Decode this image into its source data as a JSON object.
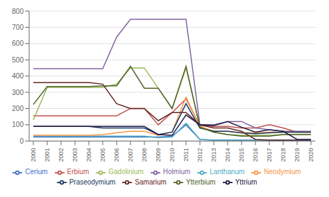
{
  "chart_data": {
    "type": "line",
    "x": [
      2000,
      2001,
      2002,
      2003,
      2004,
      2005,
      2006,
      2007,
      2008,
      2009,
      2010,
      2011,
      2012,
      2013,
      2014,
      2015,
      2016,
      2017,
      2018,
      2019,
      2020
    ],
    "series": [
      {
        "name": "Cerium",
        "color": "#4472C4",
        "values": [
          25,
          25,
          25,
          25,
          25,
          25,
          25,
          25,
          25,
          25,
          30,
          100,
          10,
          5,
          5,
          5,
          5,
          5,
          5,
          5,
          5
        ]
      },
      {
        "name": "Erbium",
        "color": "#C0504D",
        "values": [
          155,
          155,
          155,
          155,
          155,
          155,
          155,
          200,
          200,
          100,
          175,
          260,
          95,
          90,
          90,
          80,
          80,
          100,
          80,
          55,
          55
        ]
      },
      {
        "name": "Gadolinium",
        "color": "#9BBB59",
        "values": [
          130,
          330,
          330,
          330,
          330,
          330,
          350,
          450,
          450,
          325,
          200,
          450,
          90,
          55,
          40,
          35,
          35,
          35,
          40,
          40,
          40
        ]
      },
      {
        "name": "Holmium",
        "color": "#8064A2",
        "values": [
          445,
          445,
          445,
          445,
          445,
          445,
          640,
          750,
          750,
          750,
          750,
          750,
          100,
          100,
          120,
          120,
          80,
          70,
          60,
          60,
          60
        ]
      },
      {
        "name": "Lanthanum",
        "color": "#4BACC6",
        "values": [
          30,
          30,
          30,
          30,
          30,
          30,
          30,
          30,
          30,
          20,
          25,
          110,
          10,
          5,
          5,
          3,
          2,
          2,
          2,
          2,
          2
        ]
      },
      {
        "name": "Neodymium",
        "color": "#F79646",
        "values": [
          35,
          35,
          35,
          35,
          35,
          40,
          50,
          60,
          60,
          35,
          55,
          270,
          90,
          60,
          60,
          50,
          50,
          55,
          55,
          55,
          55
        ]
      },
      {
        "name": "Praseodymium",
        "color": "#17375E",
        "values": [
          90,
          90,
          90,
          90,
          90,
          80,
          80,
          80,
          80,
          40,
          55,
          230,
          80,
          60,
          60,
          50,
          45,
          50,
          55,
          55,
          55
        ]
      },
      {
        "name": "Samarium",
        "color": "#632523",
        "values": [
          360,
          360,
          360,
          360,
          360,
          350,
          230,
          200,
          200,
          125,
          175,
          175,
          100,
          80,
          80,
          60,
          10,
          5,
          5,
          5,
          5
        ]
      },
      {
        "name": "Ytterbium",
        "color": "#4F6228",
        "values": [
          225,
          335,
          335,
          335,
          335,
          340,
          340,
          460,
          325,
          325,
          200,
          460,
          85,
          55,
          40,
          30,
          30,
          30,
          40,
          40,
          40
        ]
      },
      {
        "name": "Yttrium",
        "color": "#1F1646",
        "values": [
          90,
          90,
          90,
          90,
          90,
          90,
          90,
          90,
          90,
          40,
          35,
          160,
          100,
          95,
          120,
          85,
          55,
          70,
          60,
          10,
          10
        ]
      }
    ],
    "xlim": [
      1999.7,
      2020.3
    ],
    "xticks": [
      2000,
      2001,
      2002,
      2003,
      2004,
      2005,
      2006,
      2007,
      2008,
      2009,
      2010,
      2011,
      2012,
      2013,
      2014,
      2015,
      2016,
      2017,
      2018,
      2019,
      2020
    ],
    "ylim": [
      0,
      800
    ],
    "yticks": [
      0,
      100,
      200,
      300,
      400,
      500,
      600,
      700,
      800
    ],
    "grid": true,
    "legend": "bottom"
  }
}
